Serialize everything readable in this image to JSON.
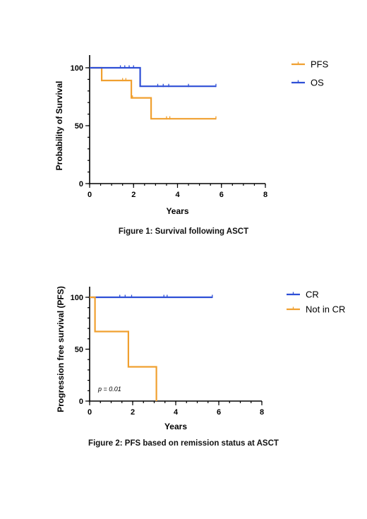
{
  "chart_data": [
    {
      "type": "line",
      "xlabel": "Years",
      "ylabel": "Probability of Survival",
      "xlim": [
        0,
        8
      ],
      "ylim": [
        0,
        100
      ],
      "xticks": [
        "0",
        "2",
        "4",
        "6",
        "8"
      ],
      "yticks": [
        "0",
        "50",
        "100"
      ],
      "legend_position": "top-right",
      "caption": "Figure 1: Survival following ASCT",
      "series": [
        {
          "name": "PFS",
          "color": "#F0A030",
          "x": [
            0,
            0.55,
            0.55,
            1.9,
            1.9,
            2.8,
            2.8,
            5.75
          ],
          "y": [
            100,
            100,
            89,
            89,
            74,
            74,
            56,
            56
          ],
          "censor": [
            [
              1.5,
              89
            ],
            [
              1.65,
              89
            ],
            [
              1.95,
              74
            ],
            [
              3.5,
              56
            ],
            [
              3.65,
              56
            ],
            [
              5.75,
              56
            ]
          ]
        },
        {
          "name": "OS",
          "color": "#2E4FD6",
          "x": [
            0,
            2.3,
            2.3,
            5.75
          ],
          "y": [
            100,
            100,
            84,
            84
          ],
          "censor": [
            [
              1.4,
              100
            ],
            [
              1.6,
              100
            ],
            [
              1.8,
              100
            ],
            [
              2.0,
              100
            ],
            [
              3.1,
              84
            ],
            [
              3.35,
              84
            ],
            [
              3.6,
              84
            ],
            [
              4.5,
              84
            ],
            [
              5.75,
              84
            ]
          ]
        }
      ]
    },
    {
      "type": "line",
      "xlabel": "Years",
      "ylabel": "Progression free survival (PFS)",
      "xlim": [
        0,
        8
      ],
      "ylim": [
        0,
        100
      ],
      "xticks": [
        "0",
        "2",
        "4",
        "6",
        "8"
      ],
      "yticks": [
        "0",
        "50",
        "100"
      ],
      "legend_position": "top-right",
      "annotation": "p = 0.01",
      "caption": "Figure 2: PFS based on remission status at ASCT",
      "series": [
        {
          "name": "CR",
          "color": "#2E4FD6",
          "x": [
            0,
            5.7
          ],
          "y": [
            100,
            100
          ],
          "censor": [
            [
              1.4,
              100
            ],
            [
              1.65,
              100
            ],
            [
              1.95,
              100
            ],
            [
              3.45,
              100
            ],
            [
              3.6,
              100
            ],
            [
              5.7,
              100
            ]
          ]
        },
        {
          "name": "Not in CR",
          "color": "#F0A030",
          "x": [
            0,
            0.25,
            0.25,
            1.8,
            1.8,
            3.1,
            3.1
          ],
          "y": [
            100,
            100,
            67,
            67,
            33,
            33,
            0
          ],
          "censor": []
        }
      ]
    }
  ]
}
